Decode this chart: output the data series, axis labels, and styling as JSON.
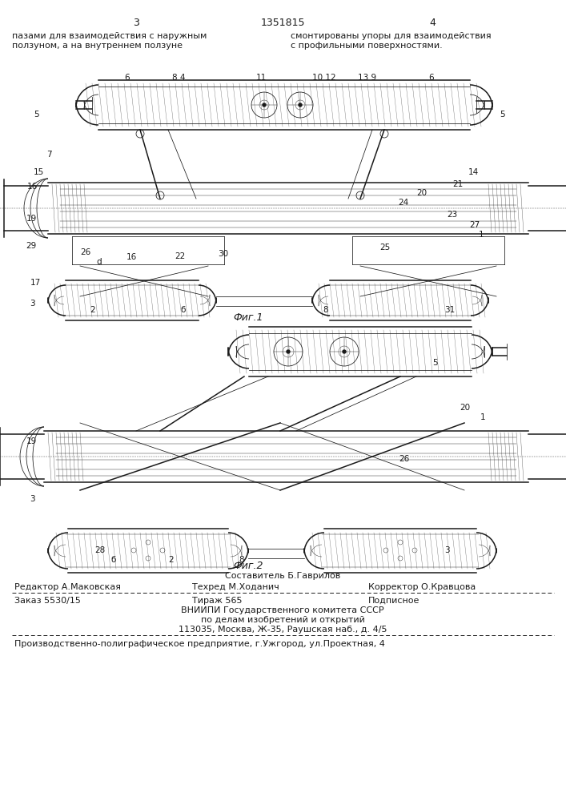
{
  "page_number_left": "3",
  "page_number_center": "1351815",
  "page_number_right": "4",
  "text_left_col": "пазами для взаимодействия с наружным\nползуном, а на внутреннем ползуне",
  "text_right_col": "смонтированы упоры для взаимодействия\nс профильными поверхностями.",
  "fig1_label": "Фиг.1",
  "fig2_label": "Фиг.2",
  "footer_author_line": "Составитель Б.Гаврилов",
  "footer_editor": "Редактор А.Маковская",
  "footer_tech": "Техред М.Ходанич",
  "footer_corrector": "Корректор О.Кравцова",
  "footer_order": "Заказ 5530/15",
  "footer_print": "Тираж 565",
  "footer_signed": "Подписное",
  "footer_org1": "ВНИИПИ Государственного комитета СССР",
  "footer_org2": "по делам изобретений и открытий",
  "footer_address": "113035, Москва, Ж-35, Раушская наб., д. 4/5",
  "footer_printer": "Производственно-полиграфическое предприятие, г.Ужгород, ул.Проектная, 4",
  "bg_color": "#ffffff",
  "text_color": "#1a1a1a",
  "line_color": "#1a1a1a",
  "dashed_line_color": "#1a1a1a",
  "fig1_labels": [
    [
      155,
      92,
      "6"
    ],
    [
      215,
      92,
      "8 4"
    ],
    [
      320,
      92,
      "11"
    ],
    [
      390,
      92,
      "10 12"
    ],
    [
      447,
      92,
      "13 9"
    ],
    [
      535,
      92,
      "6"
    ],
    [
      42,
      138,
      "5"
    ],
    [
      624,
      138,
      "5"
    ],
    [
      42,
      210,
      "15"
    ],
    [
      34,
      228,
      "16"
    ],
    [
      585,
      210,
      "14"
    ],
    [
      565,
      225,
      "21"
    ],
    [
      520,
      236,
      "20"
    ],
    [
      497,
      248,
      "24"
    ],
    [
      33,
      268,
      "19"
    ],
    [
      558,
      263,
      "23"
    ],
    [
      586,
      276,
      "27"
    ],
    [
      598,
      288,
      "1"
    ],
    [
      32,
      302,
      "29"
    ],
    [
      100,
      310,
      "26"
    ],
    [
      120,
      322,
      "d"
    ],
    [
      158,
      316,
      "16"
    ],
    [
      218,
      315,
      "22"
    ],
    [
      272,
      312,
      "30"
    ],
    [
      474,
      304,
      "25"
    ],
    [
      38,
      348,
      "17"
    ],
    [
      37,
      374,
      "3"
    ],
    [
      112,
      382,
      "2"
    ],
    [
      225,
      382,
      "б"
    ],
    [
      403,
      382,
      "8"
    ],
    [
      555,
      382,
      "31"
    ],
    [
      58,
      188,
      "7"
    ]
  ],
  "fig2_labels": [
    [
      540,
      448,
      "5"
    ],
    [
      574,
      504,
      "20"
    ],
    [
      600,
      516,
      "1"
    ],
    [
      33,
      546,
      "19"
    ],
    [
      498,
      568,
      "26"
    ],
    [
      37,
      618,
      "3"
    ],
    [
      118,
      682,
      "28"
    ],
    [
      138,
      694,
      "б"
    ],
    [
      210,
      694,
      "2"
    ],
    [
      298,
      694,
      "8"
    ],
    [
      555,
      682,
      "3"
    ]
  ]
}
